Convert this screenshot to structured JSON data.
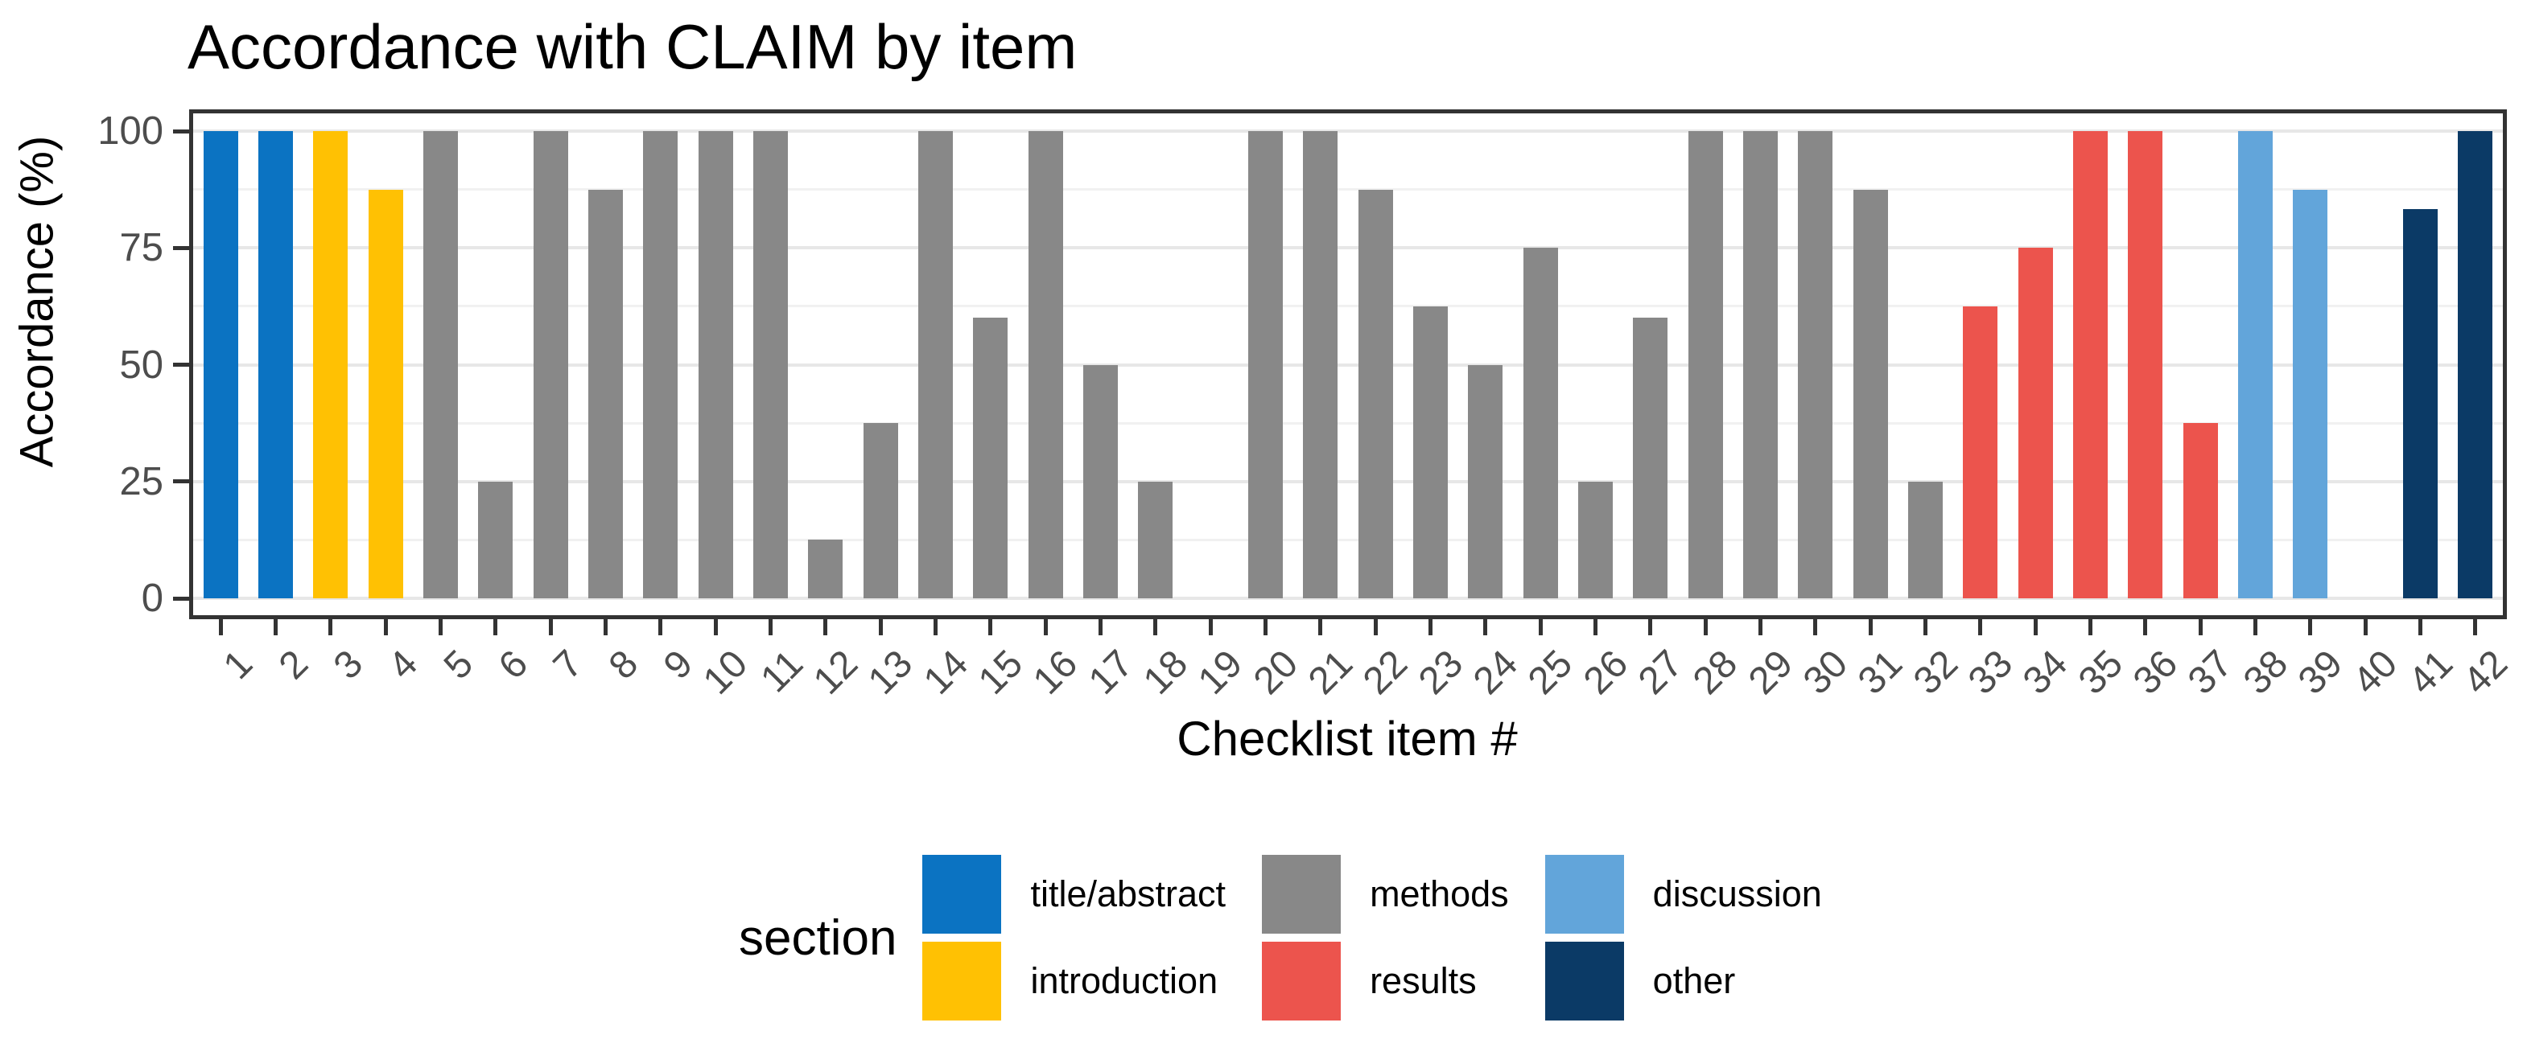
{
  "title": "Accordance with CLAIM by item",
  "axes": {
    "y_title": "Accordance (%)",
    "x_title": "Checklist item #",
    "y_ticks": [
      0,
      25,
      50,
      75,
      100
    ]
  },
  "legend": {
    "title": "section",
    "entries": [
      {
        "label": "title/abstract",
        "color": "#0b73c2"
      },
      {
        "label": "introduction",
        "color": "#ffc103"
      },
      {
        "label": "methods",
        "color": "#888888"
      },
      {
        "label": "results",
        "color": "#ec544d"
      },
      {
        "label": "discussion",
        "color": "#62a5da"
      },
      {
        "label": "other",
        "color": "#0b3a66"
      }
    ]
  },
  "colors": {
    "grid_major": "#e7e7e7",
    "grid_minor": "#f1f1f1",
    "axis_text": "#4d4d4d",
    "panel_border": "#333333"
  },
  "chart_data": {
    "type": "bar",
    "title": "Accordance with CLAIM by item",
    "xlabel": "Checklist item #",
    "ylabel": "Accordance (%)",
    "ylim": [
      0,
      100
    ],
    "grid": true,
    "y_major_ticks": [
      0,
      25,
      50,
      75,
      100
    ],
    "y_minor_gridlines": [
      12.5,
      37.5,
      62.5,
      87.5
    ],
    "legend_title": "section",
    "legend_position": "bottom",
    "categories": [
      1,
      2,
      3,
      4,
      5,
      6,
      7,
      8,
      9,
      10,
      11,
      12,
      13,
      14,
      15,
      16,
      17,
      18,
      19,
      20,
      21,
      22,
      23,
      24,
      25,
      26,
      27,
      28,
      29,
      30,
      31,
      32,
      33,
      34,
      35,
      36,
      37,
      38,
      39,
      40,
      41,
      42
    ],
    "values": [
      100,
      100,
      100,
      87.5,
      100,
      25,
      100,
      87.5,
      100,
      100,
      100,
      12.5,
      37.5,
      100,
      60,
      100,
      50,
      25,
      0,
      100,
      100,
      87.5,
      62.5,
      50,
      75,
      25,
      60,
      100,
      100,
      100,
      87.5,
      25,
      62.5,
      75,
      100,
      100,
      37.5,
      100,
      87.5,
      0,
      83.3,
      100
    ],
    "sections": [
      "title/abstract",
      "title/abstract",
      "introduction",
      "introduction",
      "methods",
      "methods",
      "methods",
      "methods",
      "methods",
      "methods",
      "methods",
      "methods",
      "methods",
      "methods",
      "methods",
      "methods",
      "methods",
      "methods",
      "methods",
      "methods",
      "methods",
      "methods",
      "methods",
      "methods",
      "methods",
      "methods",
      "methods",
      "methods",
      "methods",
      "methods",
      "methods",
      "methods",
      "results",
      "results",
      "results",
      "results",
      "results",
      "discussion",
      "discussion",
      "other",
      "other",
      "other"
    ],
    "section_colors": {
      "title/abstract": "#0b73c2",
      "introduction": "#ffc103",
      "methods": "#888888",
      "results": "#ec544d",
      "discussion": "#62a5da",
      "other": "#0b3a66"
    }
  }
}
